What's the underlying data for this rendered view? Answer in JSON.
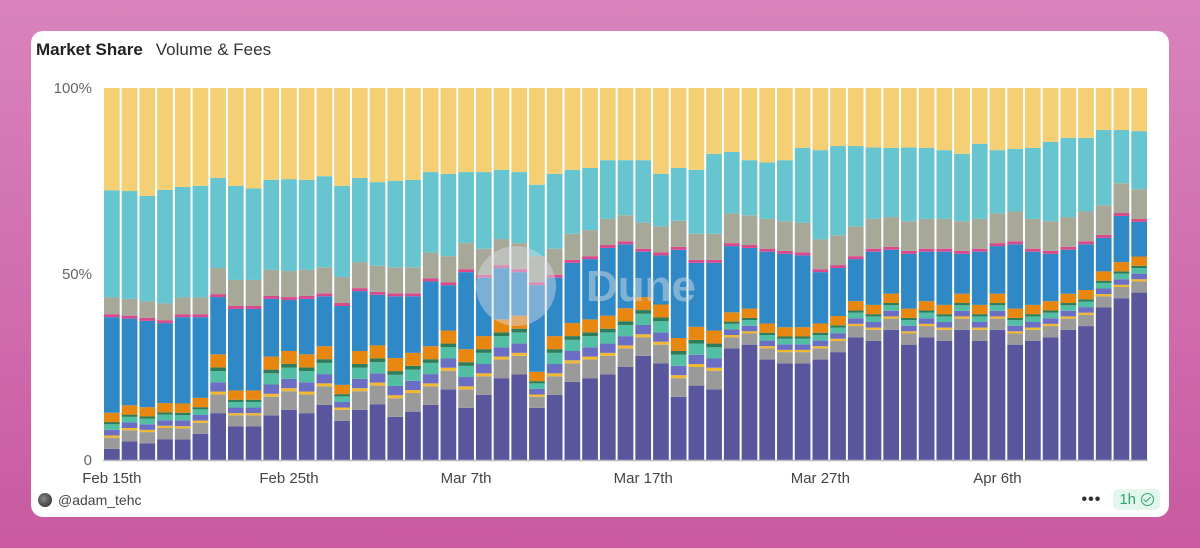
{
  "tabs": [
    "Market Share",
    "Volume & Fees"
  ],
  "footer": {
    "username": "@adam_tehc",
    "more": "•••",
    "refresh": "1h"
  },
  "watermark": "Dune",
  "chart_data": {
    "type": "bar",
    "stacked": true,
    "normalized": true,
    "title": "Market Share",
    "xlabel": "",
    "ylabel": "",
    "ylim": [
      0,
      100
    ],
    "y_ticks": [
      "0",
      "50%",
      "100%"
    ],
    "x_ticks": [
      {
        "index": 0,
        "label": "Feb 15th"
      },
      {
        "index": 10,
        "label": "Feb 25th"
      },
      {
        "index": 20,
        "label": "Mar 7th"
      },
      {
        "index": 30,
        "label": "Mar 17th"
      },
      {
        "index": 40,
        "label": "Mar 27th"
      },
      {
        "index": 50,
        "label": "Apr 6th"
      }
    ],
    "num_bars": 59,
    "series": [
      {
        "name": "s1",
        "color": "#5a569d",
        "values": [
          3,
          5,
          4.5,
          5.6,
          5.5,
          7,
          12.6,
          9,
          9,
          12,
          13.5,
          12.6,
          14.8,
          10.5,
          13.5,
          15,
          11.6,
          13,
          14.8,
          19,
          14,
          17.5,
          22,
          23,
          14,
          17.5,
          21,
          22,
          23,
          25,
          28,
          26,
          17,
          20,
          19,
          30,
          31,
          27,
          26,
          26,
          27,
          29,
          33,
          32,
          35,
          31,
          33,
          32,
          35,
          32,
          35,
          31,
          32,
          33,
          35,
          36,
          41,
          43.5,
          45
        ]
      },
      {
        "name": "s2",
        "color": "#9a9a9a",
        "values": [
          3,
          3,
          3,
          3,
          3,
          3,
          5,
          3,
          3,
          5,
          5,
          5,
          5,
          3,
          5,
          5,
          5,
          5,
          5,
          5,
          5,
          5,
          5,
          5,
          3,
          5,
          5,
          5,
          5,
          5,
          5,
          5,
          5,
          5,
          5,
          3,
          3,
          3,
          3,
          3,
          3,
          3,
          3,
          3,
          3,
          3,
          3,
          3,
          3,
          3,
          3,
          3,
          3,
          3,
          3,
          3,
          3,
          3,
          3
        ]
      },
      {
        "name": "s3",
        "color": "#f2b830",
        "values": [
          0.6,
          0.6,
          0.6,
          0.6,
          0.6,
          0.6,
          0.8,
          0.6,
          0.6,
          0.8,
          0.8,
          0.8,
          0.8,
          0.6,
          0.8,
          0.8,
          0.8,
          0.8,
          0.8,
          0.8,
          0.8,
          0.8,
          0.8,
          0.8,
          0.6,
          0.8,
          0.8,
          0.8,
          0.8,
          0.8,
          0.8,
          0.8,
          0.8,
          0.8,
          0.8,
          0.6,
          0.6,
          0.6,
          0.6,
          0.6,
          0.6,
          0.6,
          0.6,
          0.6,
          0.6,
          0.6,
          0.6,
          0.6,
          0.6,
          0.6,
          0.6,
          0.6,
          0.6,
          0.6,
          0.6,
          0.6,
          0.6,
          0.6,
          0.6
        ]
      },
      {
        "name": "s4",
        "color": "#6c6ec4",
        "values": [
          1.5,
          1.5,
          1.5,
          1.5,
          1.5,
          1.5,
          2.5,
          1.5,
          1.5,
          2.5,
          2.5,
          2.5,
          2.5,
          1.5,
          2.5,
          2.5,
          2.5,
          2.5,
          2.5,
          2.5,
          2.5,
          2.5,
          2.5,
          2.5,
          1.5,
          2.5,
          2.5,
          2.5,
          2.5,
          2.5,
          2.5,
          2.5,
          2.5,
          2.5,
          2.5,
          1.5,
          1.5,
          1.5,
          1.5,
          1.5,
          1.5,
          1.5,
          1.5,
          1.5,
          1.5,
          1.5,
          1.5,
          1.5,
          1.5,
          1.5,
          1.5,
          1.5,
          1.5,
          1.5,
          1.5,
          1.5,
          1.5,
          1.5,
          1.5
        ]
      },
      {
        "name": "s5",
        "color": "#52bfa5",
        "values": [
          1.5,
          1.5,
          1.5,
          1.5,
          1.5,
          1.5,
          3,
          1.5,
          1.5,
          3,
          3,
          3,
          3,
          1.5,
          3,
          3,
          3,
          3,
          3,
          3,
          3,
          3,
          3,
          3,
          1.5,
          3,
          3,
          3,
          3,
          3,
          3,
          3,
          3,
          3,
          3,
          1.5,
          1.5,
          1.5,
          1.5,
          1.5,
          1.5,
          1.5,
          1.5,
          1.5,
          1.5,
          1.5,
          1.5,
          1.5,
          1.5,
          1.5,
          1.5,
          1.5,
          1.5,
          1.5,
          1.5,
          1.5,
          1.5,
          1.5,
          1.5
        ]
      },
      {
        "name": "s6",
        "color": "#2e7c5a",
        "values": [
          0.6,
          0.6,
          0.6,
          0.6,
          0.6,
          0.6,
          1,
          0.6,
          0.6,
          1,
          1,
          1,
          1,
          0.6,
          1,
          1,
          1,
          1,
          1,
          1,
          1,
          1,
          1,
          1,
          0.6,
          1,
          1,
          1,
          1,
          1,
          1,
          1,
          1,
          1,
          1,
          0.6,
          0.6,
          0.6,
          0.6,
          0.6,
          0.6,
          0.6,
          0.6,
          0.6,
          0.6,
          0.6,
          0.6,
          0.6,
          0.6,
          0.6,
          0.6,
          0.6,
          0.6,
          0.6,
          0.6,
          0.6,
          0.6,
          0.6,
          0.6
        ]
      },
      {
        "name": "s7",
        "color": "#e8870f",
        "values": [
          2.5,
          2.5,
          2.5,
          2.5,
          2.5,
          2.5,
          3.5,
          2.5,
          2.5,
          3.5,
          3.5,
          3.5,
          3.5,
          2.5,
          3.5,
          3.5,
          3.5,
          3.5,
          3.5,
          3.5,
          3.5,
          3.5,
          3.5,
          3.5,
          2.5,
          3.5,
          3.5,
          3.5,
          3.5,
          3.5,
          3.5,
          3.5,
          3.5,
          3.5,
          3.5,
          2.5,
          2.5,
          2.5,
          2.5,
          2.5,
          2.5,
          2.5,
          2.5,
          2.5,
          2.5,
          2.5,
          2.5,
          2.5,
          2.5,
          2.5,
          2.5,
          2.5,
          2.5,
          2.5,
          2.5,
          2.5,
          2.5,
          2.5,
          2.5
        ]
      },
      {
        "name": "s8",
        "color": "#2e89c6",
        "values": [
          25.7,
          23.3,
          23.2,
          21.5,
          23.2,
          21.7,
          15.4,
          21.9,
          21.9,
          15.5,
          13.7,
          14.9,
          13.4,
          21.2,
          16.1,
          13.6,
          16.6,
          15.2,
          17.4,
          12.2,
          20.7,
          15.7,
          13.8,
          11.7,
          23.3,
          15.7,
          16.2,
          16.2,
          18.2,
          17.2,
          12.2,
          13.2,
          23.7,
          17.2,
          18.2,
          17.8,
          16.3,
          19.3,
          19.7,
          19.3,
          13.8,
          12.9,
          11.3,
          14.3,
          11.8,
          14.7,
          13.3,
          14.3,
          10.7,
          14.3,
          12.8,
          17.3,
          14.3,
          12.7,
          11.8,
          12.3,
          9,
          12.4,
          9.3
        ]
      },
      {
        "name": "s9",
        "color": "#d94a8c",
        "values": [
          0.8,
          0.8,
          0.8,
          0.8,
          0.8,
          0.8,
          0.8,
          0.8,
          0.8,
          0.8,
          0.8,
          0.8,
          0.8,
          0.8,
          0.8,
          0.8,
          0.8,
          0.8,
          0.8,
          0.8,
          0.8,
          0.8,
          0.8,
          0.8,
          0.8,
          0.8,
          0.8,
          0.8,
          0.8,
          0.8,
          0.8,
          0.8,
          0.8,
          0.8,
          0.8,
          0.8,
          0.8,
          0.8,
          0.8,
          0.8,
          0.8,
          0.8,
          0.8,
          0.8,
          0.8,
          0.8,
          0.8,
          0.8,
          0.8,
          0.8,
          0.8,
          0.8,
          0.8,
          0.8,
          0.8,
          0.8,
          0.8,
          0.8,
          0.8
        ]
      },
      {
        "name": "s10",
        "color": "#a8a898",
        "values": [
          4.5,
          4.5,
          4.5,
          4.5,
          4.5,
          4.5,
          7,
          7,
          7,
          7,
          7,
          7,
          7,
          7,
          7,
          7,
          7,
          7,
          7,
          7,
          7,
          7,
          7,
          7,
          7,
          7,
          7,
          7,
          7,
          7,
          7,
          7,
          7,
          7,
          7,
          8,
          8,
          8,
          8,
          8,
          8,
          8,
          8,
          8,
          8,
          8,
          8,
          8,
          8,
          8,
          8,
          8,
          8,
          8,
          8,
          8,
          8,
          8,
          8
        ]
      },
      {
        "name": "s11",
        "color": "#67c5cf",
        "values": [
          28.8,
          29,
          28.3,
          30.5,
          29.7,
          30,
          24.2,
          25.3,
          24.6,
          24.2,
          24.7,
          24.2,
          24.5,
          24.5,
          22.6,
          22.5,
          23.2,
          23.5,
          21.6,
          22.1,
          19.1,
          20.6,
          18.6,
          19.1,
          19.2,
          20.1,
          17.2,
          16.7,
          15.8,
          14.8,
          16.8,
          14.1,
          14.2,
          17.2,
          21.5,
          16.5,
          14.8,
          15.2,
          16.4,
          20.1,
          24,
          24,
          21.6,
          19.2,
          18.6,
          19.8,
          19.1,
          18.5,
          18.1,
          20.2,
          17,
          16.8,
          19.1,
          21.3,
          21.3,
          19.8,
          20.2,
          14.3,
          15.6
        ]
      },
      {
        "name": "s12",
        "color": "#f5cf73",
        "values": [
          27.5,
          27.7,
          29,
          27.4,
          26.6,
          26.3,
          24.2,
          26.3,
          27,
          24.7,
          24.5,
          24.7,
          23.7,
          26.3,
          24.2,
          25.3,
          25,
          24.7,
          22.6,
          23.1,
          22.6,
          22.6,
          22,
          22.6,
          26,
          23.1,
          22,
          21.5,
          19.4,
          19.4,
          19.4,
          23.1,
          21.5,
          22,
          17.7,
          17.2,
          19.4,
          20,
          19.4,
          16.1,
          16.7,
          15.6,
          15.6,
          16,
          16.1,
          16,
          16.1,
          16.7,
          17.7,
          15,
          16.7,
          16.4,
          16.1,
          14.5,
          13.4,
          13.4,
          11.3,
          11.3,
          11.6
        ]
      }
    ]
  }
}
